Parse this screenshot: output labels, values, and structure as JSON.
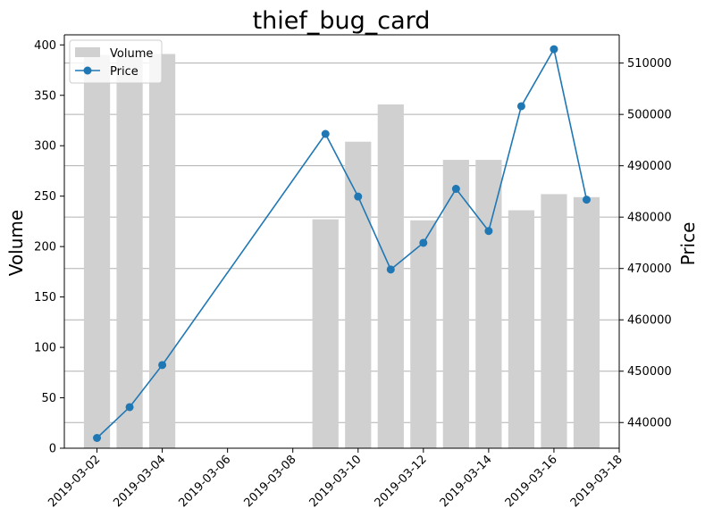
{
  "chart_data": {
    "type": "bar+line",
    "title": "thief_bug_card",
    "ylabel_left": "Volume",
    "ylabel_right": "Price",
    "colors": {
      "volume_bar": "#d0d0d0",
      "price_line": "#1f77b4",
      "grid": "#b0b0b0"
    },
    "legend": {
      "placement": "upper-left",
      "entries": [
        "Volume",
        "Price"
      ]
    },
    "grid": true,
    "x_axis": {
      "type": "date",
      "range": [
        "2019-03-01",
        "2019-03-18"
      ],
      "ticks": [
        "2019-03-02",
        "2019-03-04",
        "2019-03-06",
        "2019-03-08",
        "2019-03-10",
        "2019-03-12",
        "2019-03-14",
        "2019-03-16",
        "2019-03-18"
      ]
    },
    "y_left": {
      "range": [
        0,
        410
      ],
      "ticks": [
        0,
        50,
        100,
        150,
        200,
        250,
        300,
        350,
        400
      ]
    },
    "y_right": {
      "range": [
        435000,
        515500
      ],
      "ticks": [
        440000,
        450000,
        460000,
        470000,
        480000,
        490000,
        500000,
        510000
      ]
    },
    "series": [
      {
        "name": "Volume",
        "kind": "bar",
        "axis": "left",
        "points": [
          {
            "x": "2019-03-02",
            "y": 390
          },
          {
            "x": "2019-03-03",
            "y": 390
          },
          {
            "x": "2019-03-04",
            "y": 391
          },
          {
            "x": "2019-03-09",
            "y": 227
          },
          {
            "x": "2019-03-10",
            "y": 304
          },
          {
            "x": "2019-03-11",
            "y": 341
          },
          {
            "x": "2019-03-12",
            "y": 226
          },
          {
            "x": "2019-03-13",
            "y": 286
          },
          {
            "x": "2019-03-14",
            "y": 286
          },
          {
            "x": "2019-03-15",
            "y": 236
          },
          {
            "x": "2019-03-16",
            "y": 252
          },
          {
            "x": "2019-03-17",
            "y": 249
          }
        ]
      },
      {
        "name": "Price",
        "kind": "line",
        "axis": "right",
        "points": [
          {
            "x": "2019-03-02",
            "y": 437000
          },
          {
            "x": "2019-03-03",
            "y": 443000
          },
          {
            "x": "2019-03-04",
            "y": 451200
          },
          {
            "x": "2019-03-09",
            "y": 496200
          },
          {
            "x": "2019-03-10",
            "y": 484000
          },
          {
            "x": "2019-03-11",
            "y": 469800
          },
          {
            "x": "2019-03-12",
            "y": 475000
          },
          {
            "x": "2019-03-13",
            "y": 485500
          },
          {
            "x": "2019-03-14",
            "y": 477300
          },
          {
            "x": "2019-03-15",
            "y": 501600
          },
          {
            "x": "2019-03-16",
            "y": 512700
          },
          {
            "x": "2019-03-17",
            "y": 483400
          }
        ]
      }
    ]
  }
}
